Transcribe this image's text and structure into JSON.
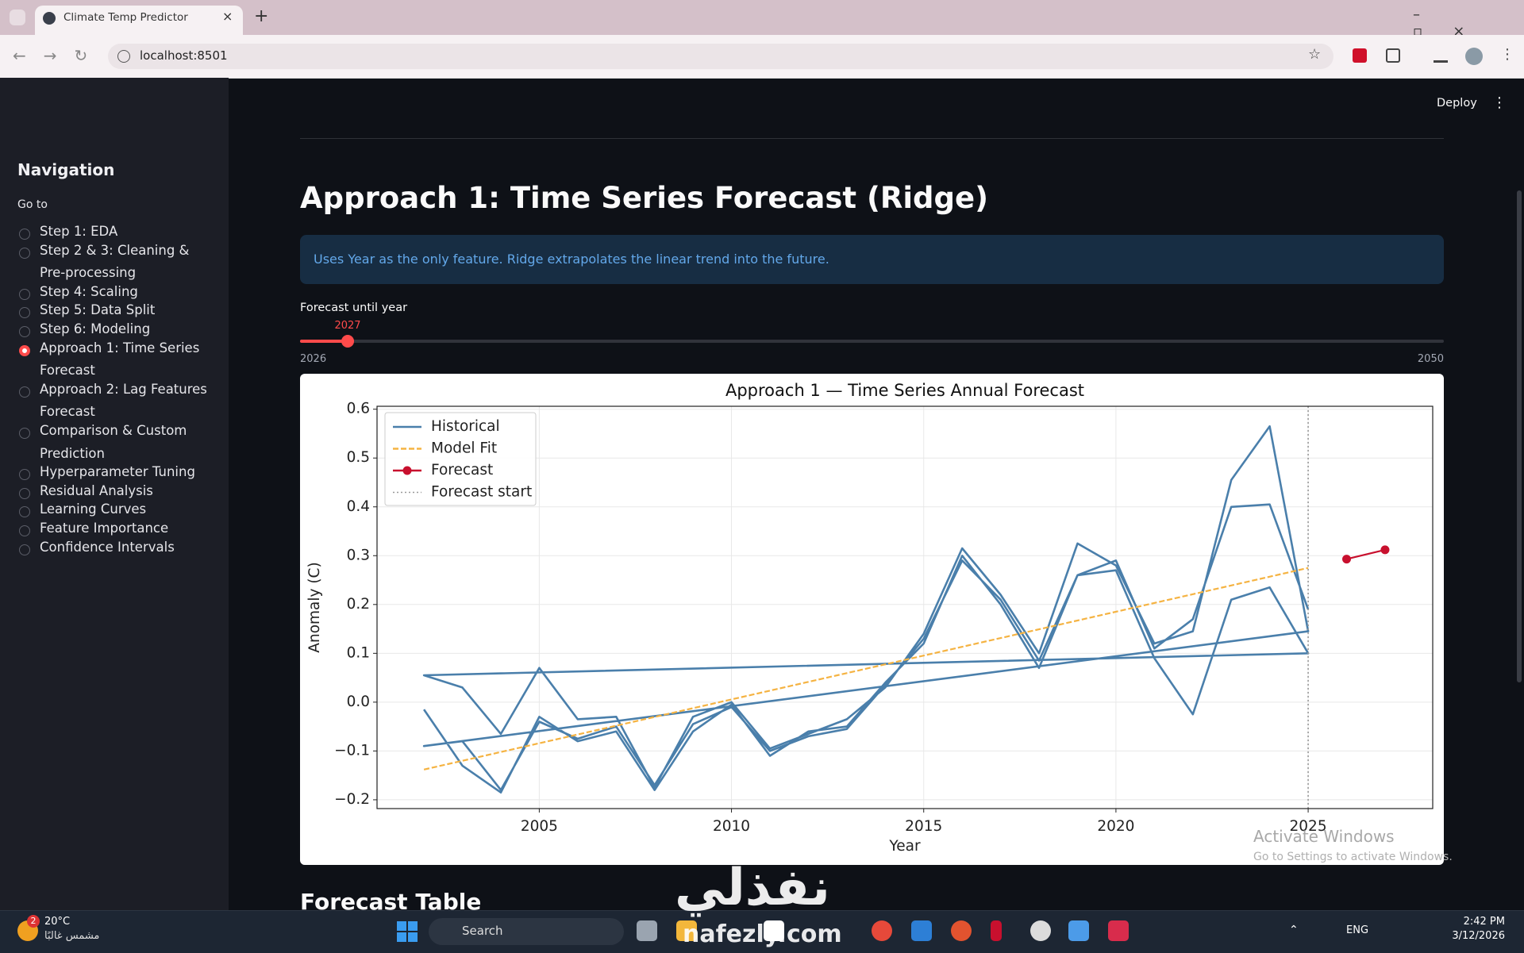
{
  "browser": {
    "tab_title": "Climate Temp Predictor",
    "url": "localhost:8501"
  },
  "app": {
    "deploy": "Deploy"
  },
  "sidebar": {
    "heading": "Navigation",
    "label": "Go to",
    "options": [
      "Step 1: EDA",
      "Step 2 & 3: Cleaning & Pre-processing",
      "Step 4: Scaling",
      "Step 5: Data Split",
      "Step 6: Modeling",
      "Approach 1: Time Series Forecast",
      "Approach 2: Lag Features Forecast",
      "Comparison & Custom Prediction",
      "Hyperparameter Tuning",
      "Residual Analysis",
      "Learning Curves",
      "Feature Importance",
      "Confidence Intervals"
    ],
    "selected": 5
  },
  "main": {
    "title": "Approach 1: Time Series Forecast (Ridge)",
    "info": "Uses Year as the only feature. Ridge extrapolates the linear trend into the future.",
    "slider": {
      "label": "Forecast until year",
      "value": 2027,
      "min": 2026,
      "max": 2050
    },
    "section_heading": "Forecast Table"
  },
  "chart_data": {
    "type": "line",
    "title": "Approach 1 — Time Series Annual Forecast",
    "x_label": "Year",
    "y_label": "Anomaly (C)",
    "xlim": [
      2000.78,
      2028.24
    ],
    "ylim": [
      -0.218,
      0.606
    ],
    "xticks": [
      2005,
      2010,
      2015,
      2020,
      2025
    ],
    "yticks": [
      {
        "value": -0.2,
        "label": "−0.2"
      },
      {
        "value": -0.1,
        "label": "−0.1"
      },
      {
        "value": 0,
        "label": "0.0"
      },
      0.1,
      0.2,
      0.3,
      0.4,
      0.5,
      0.6
    ],
    "grid": true,
    "legend": "upper left",
    "series": [
      {
        "name": "Historical",
        "color": "#4a7fab",
        "linestyle": "solid",
        "marker": "none",
        "x": [
          2002,
          2003,
          2004,
          2005,
          2006,
          2007,
          2008,
          2009,
          2010,
          2011,
          2012,
          2013,
          2014,
          2015,
          2016,
          2017,
          2018,
          2019,
          2020,
          2021,
          2022,
          2023,
          2024,
          2025,
          2002,
          2003,
          2004,
          2005,
          2006,
          2007,
          2008,
          2009,
          2010,
          2011,
          2012,
          2013,
          2014,
          2015,
          2016,
          2017,
          2018,
          2019,
          2020,
          2021,
          2022,
          2023,
          2024,
          2025,
          2002,
          2003,
          2004,
          2005,
          2006,
          2007,
          2008,
          2009,
          2010,
          2011,
          2012,
          2013,
          2014,
          2015,
          2016,
          2017,
          2018,
          2019,
          2020,
          2021,
          2022,
          2023,
          2024,
          2025
        ],
        "values": [
          -0.015,
          -0.13,
          -0.185,
          -0.03,
          -0.08,
          -0.06,
          -0.18,
          -0.06,
          -0.005,
          -0.11,
          -0.06,
          -0.05,
          0.04,
          0.12,
          0.3,
          0.2,
          0.07,
          0.26,
          0.27,
          0.09,
          -0.025,
          0.21,
          0.235,
          0.1,
          0.055,
          0.03,
          -0.065,
          0.07,
          -0.035,
          -0.03,
          -0.175,
          -0.03,
          0.0,
          -0.095,
          -0.065,
          -0.035,
          0.03,
          0.14,
          0.315,
          0.22,
          0.1,
          0.325,
          0.28,
          0.12,
          0.145,
          0.455,
          0.565,
          0.145,
          -0.09,
          -0.08,
          -0.18,
          -0.04,
          -0.075,
          -0.05,
          -0.17,
          -0.045,
          -0.01,
          -0.1,
          -0.07,
          -0.055,
          0.035,
          0.13,
          0.29,
          0.21,
          0.085,
          0.26,
          0.29,
          0.11,
          0.17,
          0.4,
          0.405,
          0.19
        ]
      },
      {
        "name": "Model Fit",
        "color": "#f5b342",
        "linestyle": "dashed",
        "marker": "none",
        "x": [
          2002,
          2025
        ],
        "values": [
          -0.138,
          0.275
        ]
      },
      {
        "name": "Forecast",
        "color": "#c8102e",
        "linestyle": "solid",
        "marker": "o",
        "x": [
          2026,
          2027
        ],
        "values": [
          0.293,
          0.312
        ]
      }
    ],
    "vline": {
      "name": "Forecast start",
      "x": 2025,
      "color": "#999999"
    }
  },
  "watermarks": {
    "windows_title": "Activate Windows",
    "windows_hint": "Go to Settings to activate Windows.",
    "brand_arabic": "نفذلي",
    "brand_site": "nafezly.com"
  },
  "taskbar": {
    "badge": "2",
    "temperature": "20°C",
    "weather": "مشمس غالبًا",
    "search": "Search",
    "language": "ENG",
    "time": "2:42 PM",
    "date": "3/12/2026"
  }
}
